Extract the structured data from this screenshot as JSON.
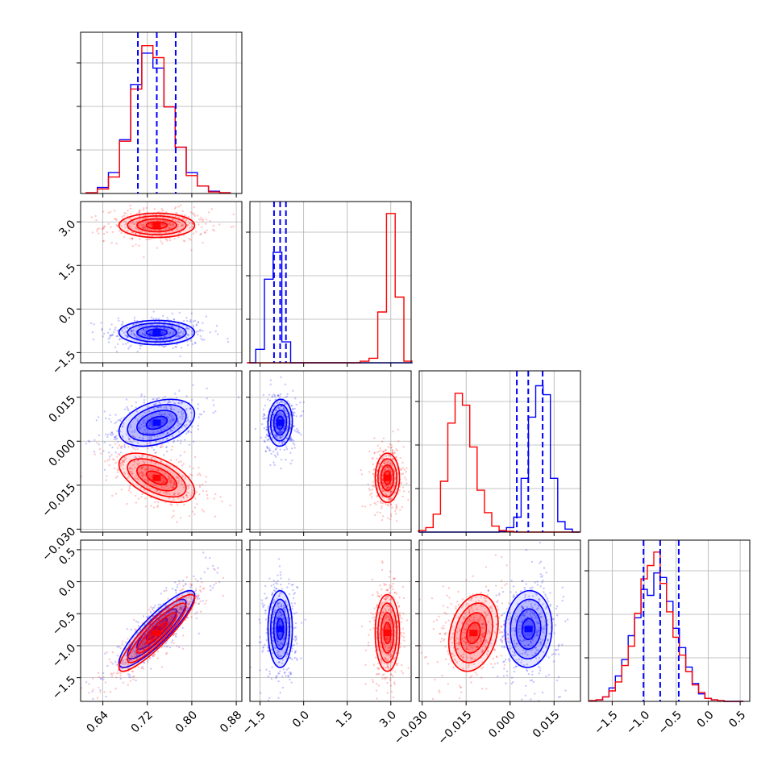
{
  "chart_data": {
    "type": "corner",
    "colors": {
      "series_a": "#0000ff",
      "series_b": "#ff0000"
    },
    "grid": true,
    "params": [
      {
        "range": [
          0.6,
          0.89
        ],
        "ticks": [
          0.64,
          0.72,
          0.8,
          0.88
        ],
        "tick_labels": [
          "0.64",
          "0.72",
          "0.80",
          "0.88"
        ],
        "hist_bins": [
          0.62,
          0.64,
          0.66,
          0.68,
          0.7,
          0.72,
          0.74,
          0.76,
          0.78,
          0.8,
          0.82,
          0.84,
          0.86
        ],
        "hist_series_a": [
          0.005,
          0.04,
          0.14,
          0.36,
          0.73,
          0.94,
          0.84,
          0.58,
          0.31,
          0.14,
          0.05,
          0.015,
          0.005
        ],
        "hist_series_b": [
          0.005,
          0.03,
          0.11,
          0.35,
          0.7,
          0.99,
          0.91,
          0.58,
          0.31,
          0.12,
          0.05,
          0.01,
          0.005
        ],
        "quantiles_series_a": [
          0.703,
          0.737,
          0.771
        ]
      },
      {
        "range": [
          -1.85,
          3.7
        ],
        "ticks": [
          -1.5,
          0.0,
          1.5,
          3.0
        ],
        "tick_labels": [
          "−1.5",
          "0.0",
          "1.5",
          "3.0"
        ],
        "hist_bins": [
          -1.8,
          -1.5,
          -1.2,
          -0.9,
          -0.6,
          -0.3,
          0.0,
          0.3,
          0.6,
          0.9,
          1.2,
          1.5,
          1.8,
          2.1,
          2.4,
          2.7,
          3.0,
          3.3,
          3.6
        ],
        "hist_series_a": [
          0.0,
          0.09,
          0.56,
          0.74,
          0.14,
          0.0,
          0,
          0,
          0,
          0,
          0,
          0,
          0,
          0,
          0,
          0,
          0,
          0,
          0
        ],
        "hist_series_b": [
          0,
          0,
          0,
          0,
          0,
          0,
          0,
          0,
          0,
          0,
          0,
          0,
          0,
          0.01,
          0.03,
          0.34,
          1.0,
          0.44,
          0.01
        ],
        "quantiles_series_a": [
          -1.02,
          -0.81,
          -0.61
        ]
      },
      {
        "range": [
          -0.031,
          0.024
        ],
        "ticks": [
          -0.03,
          -0.015,
          0.0,
          0.015
        ],
        "tick_labels": [
          "−0.030",
          "−0.015",
          "0.000",
          "0.015"
        ],
        "hist_bins": [
          -0.03,
          -0.0275,
          -0.025,
          -0.0225,
          -0.02,
          -0.0175,
          -0.015,
          -0.0125,
          -0.01,
          -0.0075,
          -0.005,
          -0.0025,
          0.0,
          0.0025,
          0.005,
          0.0075,
          0.01,
          0.0125,
          0.015,
          0.0175,
          0.02,
          0.0225
        ],
        "hist_series_a": [
          0,
          0,
          0,
          0,
          0,
          0,
          0,
          0,
          0,
          0,
          0,
          0.005,
          0.03,
          0.1,
          0.36,
          0.77,
          0.98,
          0.92,
          0.36,
          0.07,
          0.02,
          0
        ],
        "hist_series_b": [
          0.01,
          0.03,
          0.12,
          0.34,
          0.73,
          0.93,
          0.85,
          0.57,
          0.28,
          0.13,
          0.04,
          0.01,
          0.005,
          0,
          0,
          0,
          0,
          0,
          0,
          0,
          0,
          0
        ],
        "quantiles_series_a": [
          0.0023,
          0.0062,
          0.0111
        ]
      },
      {
        "range": [
          -1.87,
          0.65
        ],
        "ticks": [
          -1.5,
          -1.0,
          -0.5,
          0.0,
          0.5
        ],
        "tick_labels": [
          "−1.5",
          "−1.0",
          "−0.5",
          "0.0",
          "0.5"
        ],
        "hist_bins": [
          -1.8,
          -1.7,
          -1.6,
          -1.5,
          -1.4,
          -1.3,
          -1.2,
          -1.1,
          -1.0,
          -0.9,
          -0.8,
          -0.7,
          -0.6,
          -0.5,
          -0.4,
          -0.3,
          -0.2,
          -0.1,
          0.0,
          0.1,
          0.2,
          0.3,
          0.4,
          0.5
        ],
        "hist_series_a": [
          0.005,
          0.01,
          0.03,
          0.09,
          0.17,
          0.28,
          0.44,
          0.56,
          0.75,
          0.71,
          0.86,
          0.83,
          0.67,
          0.49,
          0.36,
          0.23,
          0.12,
          0.05,
          0.02,
          0.01,
          0.005,
          0,
          0,
          0
        ],
        "hist_series_b": [
          0.005,
          0.01,
          0.03,
          0.07,
          0.13,
          0.24,
          0.37,
          0.59,
          0.82,
          0.91,
          1.0,
          0.79,
          0.6,
          0.43,
          0.31,
          0.2,
          0.11,
          0.06,
          0.02,
          0.01,
          0.005,
          0,
          0,
          0
        ],
        "quantiles_series_a": [
          -1.01,
          -0.75,
          -0.46
        ]
      }
    ],
    "panels_2d": [
      {
        "row": 1,
        "col": 0,
        "series_a": {
          "center": [
            0.737,
            -0.81
          ],
          "sd": [
            0.034,
            0.21
          ],
          "rho": 0.0
        },
        "series_b": {
          "center": [
            0.737,
            2.88
          ],
          "sd": [
            0.034,
            0.21
          ],
          "rho": 0.0
        }
      },
      {
        "row": 2,
        "col": 0,
        "series_a": {
          "center": [
            0.737,
            0.0063
          ],
          "sd": [
            0.034,
            0.004
          ],
          "rho": 0.38
        },
        "series_b": {
          "center": [
            0.737,
            -0.0125
          ],
          "sd": [
            0.034,
            0.0042
          ],
          "rho": -0.55
        }
      },
      {
        "row": 2,
        "col": 1,
        "series_a": {
          "center": [
            -0.81,
            0.0063
          ],
          "sd": [
            0.21,
            0.004
          ],
          "rho": 0.05
        },
        "series_b": {
          "center": [
            2.88,
            -0.0125
          ],
          "sd": [
            0.21,
            0.0042
          ],
          "rho": 0.0
        }
      },
      {
        "row": 3,
        "col": 0,
        "series_a": {
          "center": [
            0.737,
            -0.74
          ],
          "sd": [
            0.034,
            0.3
          ],
          "rho": 0.88
        },
        "series_b": {
          "center": [
            0.737,
            -0.8
          ],
          "sd": [
            0.034,
            0.3
          ],
          "rho": 0.9
        }
      },
      {
        "row": 3,
        "col": 1,
        "series_a": {
          "center": [
            -0.81,
            -0.74
          ],
          "sd": [
            0.21,
            0.3
          ],
          "rho": 0.0
        },
        "series_b": {
          "center": [
            2.88,
            -0.8
          ],
          "sd": [
            0.21,
            0.3
          ],
          "rho": 0.0
        }
      },
      {
        "row": 3,
        "col": 2,
        "series_a": {
          "center": [
            0.0063,
            -0.74
          ],
          "sd": [
            0.004,
            0.3
          ],
          "rho": 0.05
        },
        "series_b": {
          "center": [
            -0.0125,
            -0.8
          ],
          "sd": [
            0.0042,
            0.3
          ],
          "rho": 0.25
        }
      }
    ]
  }
}
